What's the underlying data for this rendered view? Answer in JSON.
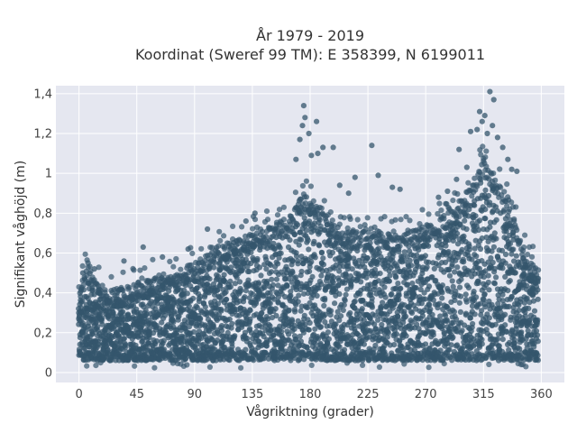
{
  "chart_data": {
    "type": "scatter",
    "title": [
      "År 1979 - 2019",
      "Koordinat (Sweref 99 TM): E 358399, N 6199011"
    ],
    "xlabel": "Vågriktning (grader)",
    "ylabel": "Signifikant våghöjd (m)",
    "xlim": [
      -18,
      378
    ],
    "ylim": [
      -0.05,
      1.44
    ],
    "xticks": [
      0,
      45,
      90,
      135,
      180,
      225,
      270,
      315,
      360
    ],
    "xtick_labels": [
      "0",
      "45",
      "90",
      "135",
      "180",
      "225",
      "270",
      "315",
      "360"
    ],
    "yticks": [
      0,
      0.2,
      0.4,
      0.6,
      0.8,
      1.0,
      1.2,
      1.4
    ],
    "ytick_labels": [
      "0",
      "0,2",
      "0,4",
      "0,6",
      "0,8",
      "1",
      "1,2",
      "1,4"
    ],
    "grid": true,
    "marker_color": "#34566c",
    "background_color": "#e5e7f0",
    "envelope": {
      "description_points_x": [
        0,
        5,
        10,
        20,
        30,
        45,
        60,
        75,
        90,
        105,
        120,
        135,
        150,
        165,
        175,
        185,
        200,
        215,
        230,
        245,
        260,
        275,
        290,
        300,
        310,
        315,
        320,
        330,
        340,
        350,
        358
      ],
      "upper_y": [
        0.4,
        0.48,
        0.44,
        0.38,
        0.37,
        0.4,
        0.44,
        0.46,
        0.5,
        0.56,
        0.62,
        0.66,
        0.68,
        0.74,
        0.85,
        0.78,
        0.68,
        0.66,
        0.65,
        0.64,
        0.66,
        0.7,
        0.76,
        0.82,
        0.96,
        1.02,
        0.96,
        0.86,
        0.7,
        0.52,
        0.46
      ],
      "lower_y": [
        0.06,
        0.06,
        0.06,
        0.06,
        0.06,
        0.06,
        0.06,
        0.06,
        0.06,
        0.06,
        0.06,
        0.06,
        0.06,
        0.06,
        0.06,
        0.06,
        0.06,
        0.06,
        0.06,
        0.06,
        0.06,
        0.06,
        0.06,
        0.06,
        0.06,
        0.06,
        0.06,
        0.06,
        0.06,
        0.06,
        0.06
      ]
    },
    "outliers": [
      {
        "x": 175,
        "y": 1.34
      },
      {
        "x": 176,
        "y": 1.28
      },
      {
        "x": 174,
        "y": 1.24
      },
      {
        "x": 172,
        "y": 1.17
      },
      {
        "x": 185,
        "y": 1.26
      },
      {
        "x": 186,
        "y": 1.1
      },
      {
        "x": 190,
        "y": 1.13
      },
      {
        "x": 198,
        "y": 1.13
      },
      {
        "x": 228,
        "y": 1.14
      },
      {
        "x": 179,
        "y": 1.2
      },
      {
        "x": 181,
        "y": 1.09
      },
      {
        "x": 169,
        "y": 1.07
      },
      {
        "x": 203,
        "y": 0.94
      },
      {
        "x": 215,
        "y": 0.98
      },
      {
        "x": 233,
        "y": 0.99
      },
      {
        "x": 244,
        "y": 0.93
      },
      {
        "x": 250,
        "y": 0.92
      },
      {
        "x": 210,
        "y": 0.9
      },
      {
        "x": 320,
        "y": 1.41
      },
      {
        "x": 323,
        "y": 1.37
      },
      {
        "x": 312,
        "y": 1.31
      },
      {
        "x": 316,
        "y": 1.29
      },
      {
        "x": 314,
        "y": 1.26
      },
      {
        "x": 305,
        "y": 1.21
      },
      {
        "x": 310,
        "y": 1.22
      },
      {
        "x": 322,
        "y": 1.24
      },
      {
        "x": 326,
        "y": 1.18
      },
      {
        "x": 318,
        "y": 1.2
      },
      {
        "x": 330,
        "y": 1.13
      },
      {
        "x": 334,
        "y": 1.07
      },
      {
        "x": 337,
        "y": 1.02
      },
      {
        "x": 341,
        "y": 1.01
      },
      {
        "x": 296,
        "y": 1.12
      },
      {
        "x": 302,
        "y": 1.03
      },
      {
        "x": 294,
        "y": 0.97
      },
      {
        "x": 287,
        "y": 0.91
      },
      {
        "x": 280,
        "y": 0.88
      },
      {
        "x": 35,
        "y": 0.56
      },
      {
        "x": 50,
        "y": 0.63
      },
      {
        "x": 85,
        "y": 0.62
      },
      {
        "x": 65,
        "y": 0.58
      },
      {
        "x": 7,
        "y": 0.55
      },
      {
        "x": 12,
        "y": 0.52
      },
      {
        "x": 3,
        "y": 0.5
      },
      {
        "x": 100,
        "y": 0.72
      },
      {
        "x": 130,
        "y": 0.76
      },
      {
        "x": 137,
        "y": 0.8
      }
    ]
  }
}
